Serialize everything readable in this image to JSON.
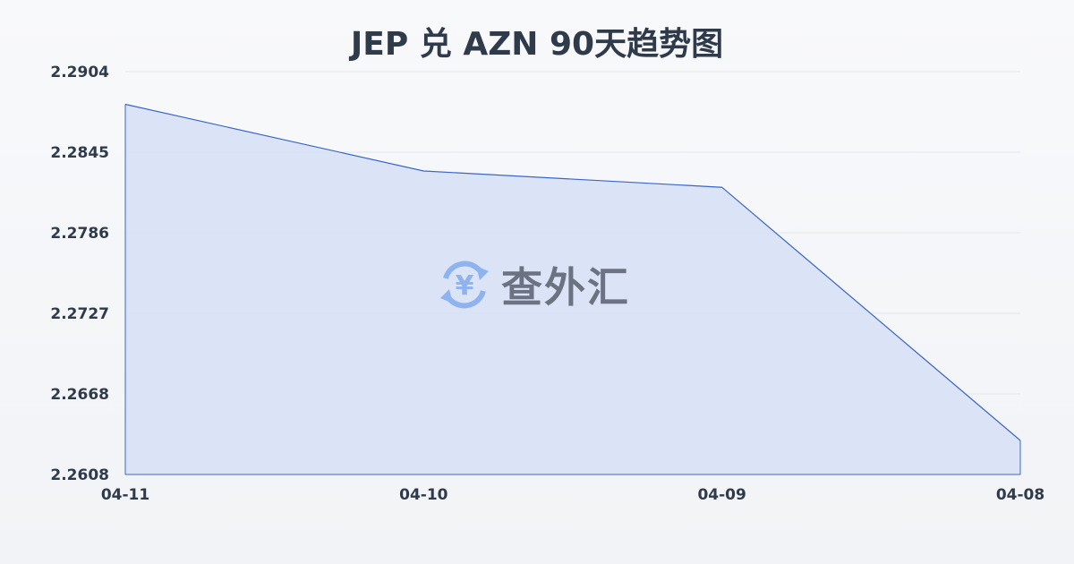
{
  "chart_data": {
    "type": "area",
    "title": "JEP 兑 AZN 90天趋势图",
    "categories": [
      "04-11",
      "04-10",
      "04-09",
      "04-08"
    ],
    "values": [
      2.288,
      2.2831,
      2.2819,
      2.2633
    ],
    "yticks": [
      "2.2904",
      "2.2845",
      "2.2786",
      "2.2727",
      "2.2668",
      "2.2608"
    ],
    "ylim": [
      2.2608,
      2.2904
    ],
    "grid": true,
    "line_color": "#3a66c8",
    "fill_color": "#d6e1f6"
  },
  "watermark": {
    "text": "查外汇",
    "icon": "yen-exchange-icon"
  }
}
